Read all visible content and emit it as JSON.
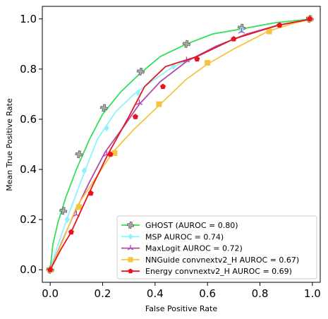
{
  "chart_data": {
    "type": "line",
    "title": "",
    "xlabel": "False Positive Rate",
    "ylabel": "Mean True Positive Rate",
    "xlim": [
      -0.03,
      1.03
    ],
    "ylim": [
      -0.05,
      1.05
    ],
    "xticks": [
      0.0,
      0.2,
      0.4,
      0.6,
      0.8,
      1.0
    ],
    "yticks": [
      0.0,
      0.2,
      0.4,
      0.6,
      0.8,
      1.0
    ],
    "xtick_labels": [
      "0.0",
      "0.2",
      "0.4",
      "0.6",
      "0.8",
      "1.0"
    ],
    "ytick_labels": [
      "0.0",
      "0.2",
      "0.4",
      "0.6",
      "0.8",
      "1.0"
    ],
    "grid": false,
    "legend_position": "bottom-right",
    "series": [
      {
        "name": "GHOST (AUROC = 0.80)",
        "color": "#33e05a",
        "marker": "cross",
        "marker_face": "#aaaaaa",
        "x": [
          0.0,
          0.01,
          0.03,
          0.06,
          0.1,
          0.15,
          0.2,
          0.27,
          0.34,
          0.42,
          0.52,
          0.62,
          0.73,
          0.86,
          1.0
        ],
        "y": [
          0.0,
          0.1,
          0.19,
          0.29,
          0.4,
          0.52,
          0.62,
          0.71,
          0.78,
          0.85,
          0.9,
          0.94,
          0.96,
          0.985,
          1.0
        ],
        "marker_x": [
          0.0,
          0.05,
          0.11,
          0.205,
          0.345,
          0.52,
          0.73,
          0.99
        ],
        "marker_y": [
          0.0,
          0.235,
          0.46,
          0.645,
          0.79,
          0.9,
          0.965,
          1.0
        ]
      },
      {
        "name": "MSP  AUROC = 0.74)",
        "color": "#8ef2ff",
        "marker": "diamond",
        "x": [
          0.0,
          0.03,
          0.07,
          0.12,
          0.18,
          0.25,
          0.32,
          0.4,
          0.47,
          0.58,
          0.7,
          0.82,
          0.92,
          1.0
        ],
        "y": [
          0.0,
          0.1,
          0.22,
          0.36,
          0.52,
          0.63,
          0.7,
          0.76,
          0.81,
          0.86,
          0.92,
          0.96,
          0.985,
          1.0
        ],
        "marker_x": [
          0.0,
          0.065,
          0.13,
          0.215,
          0.335,
          0.47,
          0.73,
          0.99
        ],
        "marker_y": [
          0.0,
          0.2,
          0.395,
          0.565,
          0.705,
          0.81,
          0.955,
          1.0
        ]
      },
      {
        "name": "MaxLogit  AUROC = 0.72)",
        "color": "#ad4cad",
        "marker": "tri",
        "x": [
          0.0,
          0.04,
          0.09,
          0.15,
          0.21,
          0.28,
          0.34,
          0.42,
          0.52,
          0.63,
          0.75,
          0.87,
          1.0
        ],
        "y": [
          0.0,
          0.1,
          0.22,
          0.35,
          0.47,
          0.57,
          0.66,
          0.75,
          0.83,
          0.89,
          0.94,
          0.975,
          1.0
        ],
        "marker_x": [
          0.0,
          0.1,
          0.215,
          0.34,
          0.52,
          0.73,
          0.99
        ],
        "marker_y": [
          0.0,
          0.22,
          0.46,
          0.665,
          0.835,
          0.95,
          1.0
        ]
      },
      {
        "name": "NNGuide convnextv2_H  AUROC = 0.67)",
        "color": "#f5c542",
        "marker": "square",
        "x": [
          0.0,
          0.05,
          0.1,
          0.17,
          0.24,
          0.32,
          0.42,
          0.52,
          0.6,
          0.7,
          0.83,
          0.92,
          1.0
        ],
        "y": [
          0.0,
          0.12,
          0.25,
          0.36,
          0.47,
          0.56,
          0.66,
          0.76,
          0.82,
          0.88,
          0.95,
          0.98,
          1.0
        ],
        "marker_x": [
          0.0,
          0.11,
          0.245,
          0.415,
          0.6,
          0.835,
          0.99
        ],
        "marker_y": [
          0.0,
          0.25,
          0.465,
          0.66,
          0.825,
          0.95,
          1.0
        ]
      },
      {
        "name": "Energy convnextv2_H  AUROC = 0.69)",
        "color": "#e8141e",
        "marker": "pentagon",
        "x": [
          0.0,
          0.04,
          0.08,
          0.15,
          0.22,
          0.3,
          0.36,
          0.44,
          0.56,
          0.7,
          0.87,
          1.0
        ],
        "y": [
          0.0,
          0.08,
          0.15,
          0.31,
          0.46,
          0.61,
          0.73,
          0.81,
          0.85,
          0.92,
          0.975,
          1.0
        ],
        "marker_x": [
          0.0,
          0.08,
          0.155,
          0.23,
          0.325,
          0.43,
          0.56,
          0.7,
          0.875,
          0.99
        ],
        "marker_y": [
          0.0,
          0.15,
          0.305,
          0.46,
          0.61,
          0.73,
          0.84,
          0.92,
          0.975,
          1.0
        ]
      }
    ]
  }
}
